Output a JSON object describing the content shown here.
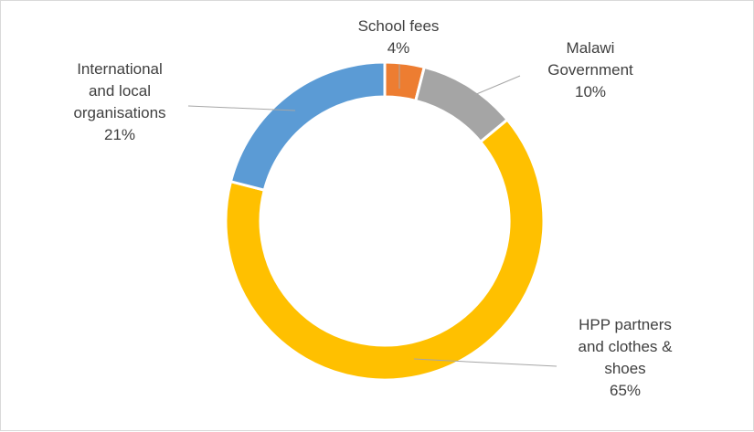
{
  "chart_data": {
    "type": "pie",
    "variant": "doughnut",
    "title": "",
    "start_angle_deg": 0,
    "direction": "clockwise",
    "slices": [
      {
        "name": "School fees",
        "value": 4,
        "value_label": "4%",
        "label_lines": [
          "School fees"
        ],
        "color": "#ed7d31"
      },
      {
        "name": "Malawi Government",
        "value": 10,
        "value_label": "10%",
        "label_lines": [
          "Malawi",
          "Government"
        ],
        "color": "#a5a5a5"
      },
      {
        "name": "HPP partners and clothes & shoes",
        "value": 65,
        "value_label": "65%",
        "label_lines": [
          "HPP partners",
          "and clothes &",
          "shoes"
        ],
        "color": "#ffc000"
      },
      {
        "name": "International and local organisations",
        "value": 21,
        "value_label": "21%",
        "label_lines": [
          "International",
          "and local",
          "organisations"
        ],
        "color": "#5b9bd5"
      }
    ],
    "legend": "none",
    "data_labels": "outside-with-leader-lines"
  }
}
